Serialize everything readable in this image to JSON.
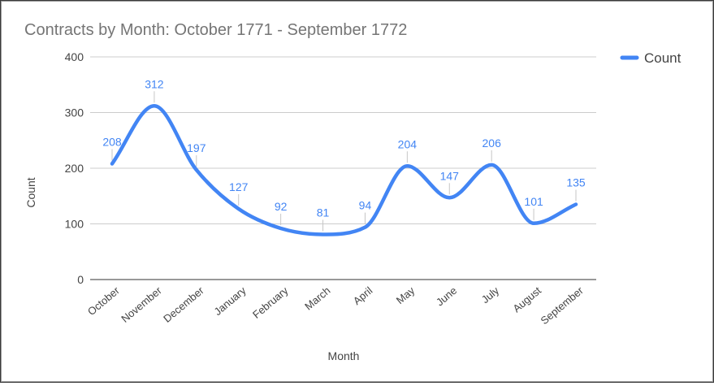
{
  "chart_data": {
    "type": "line",
    "title": "Contracts by Month: October 1771 - September 1772",
    "xlabel": "Month",
    "ylabel": "Count",
    "ylim": [
      0,
      400
    ],
    "yticks": [
      0,
      100,
      200,
      300,
      400
    ],
    "grid": true,
    "smooth": true,
    "legend_position": "right",
    "categories": [
      "October",
      "November",
      "December",
      "January",
      "February",
      "March",
      "April",
      "May",
      "June",
      "July",
      "August",
      "September"
    ],
    "series": [
      {
        "name": "Count",
        "color": "#4285f4",
        "values": [
          208,
          312,
          197,
          127,
          92,
          81,
          94,
          204,
          147,
          206,
          101,
          135
        ]
      }
    ]
  }
}
